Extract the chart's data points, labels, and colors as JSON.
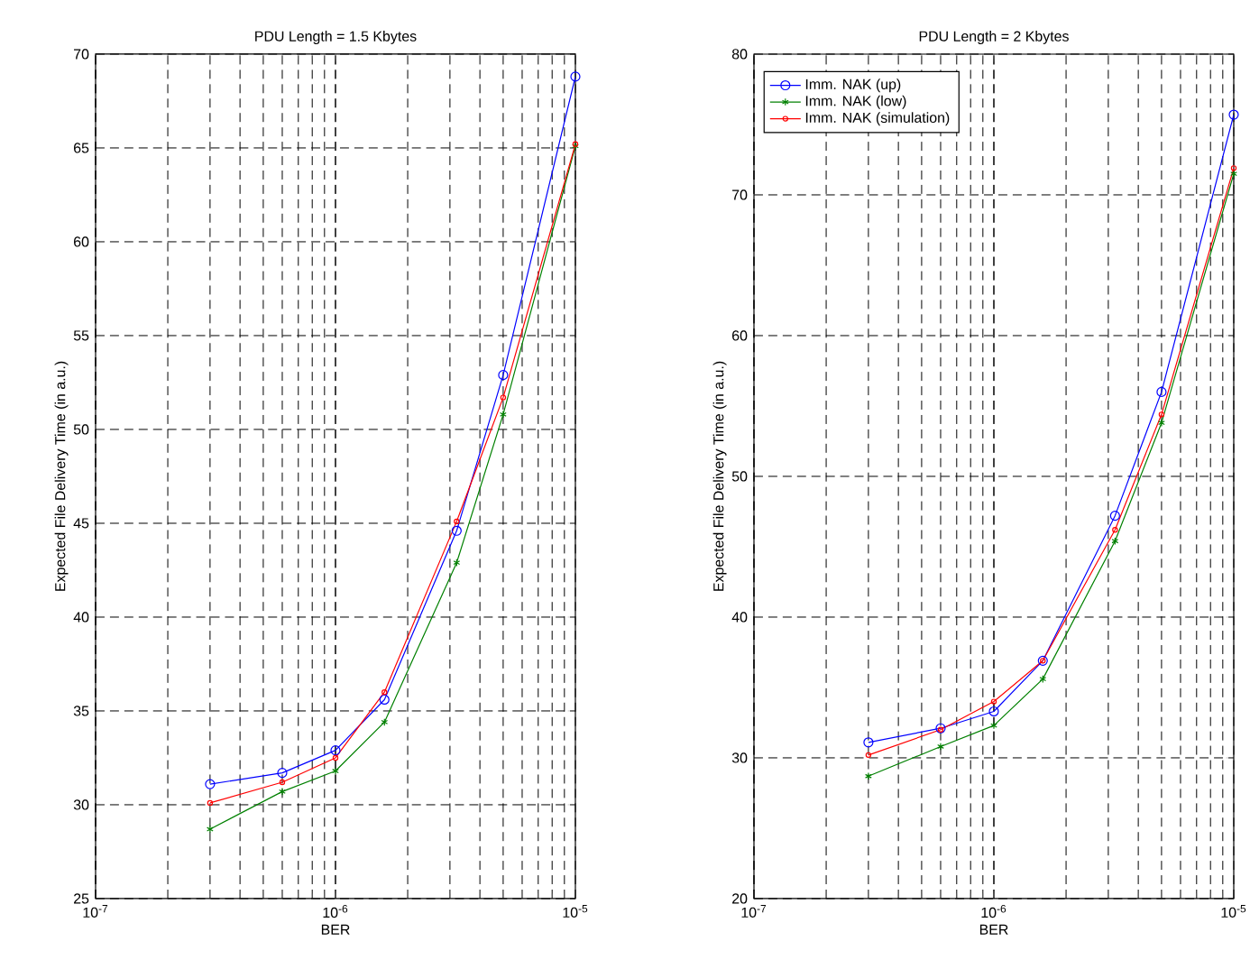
{
  "chart_data": [
    {
      "type": "line",
      "title": "PDU Length = 1.5 Kbytes",
      "xlabel": "BER",
      "ylabel": "Expected File Delivery Time (in a.u.)",
      "log": "x",
      "grid": true,
      "legend": false,
      "xlim": [
        1e-07,
        1e-05
      ],
      "xticks": [
        {
          "value": 1e-07,
          "label": "10$^{-7}$"
        },
        {
          "value": 1e-06,
          "label": "10$^{-6}$"
        },
        {
          "value": 1e-05,
          "label": "10$^{-5}$"
        }
      ],
      "ylim": [
        25,
        70
      ],
      "yticks": [
        25,
        30,
        35,
        40,
        45,
        50,
        55,
        60,
        65,
        70
      ],
      "x": [
        3e-07,
        6e-07,
        1e-06,
        1.6e-06,
        3.2e-06,
        5e-06,
        1e-05
      ],
      "series": [
        {
          "color": "#0000ff",
          "marker": "circle",
          "values": [
            31.1,
            31.7,
            32.9,
            35.6,
            44.6,
            52.9,
            68.8
          ]
        },
        {
          "color": "#008000",
          "marker": "cross",
          "values": [
            28.7,
            30.7,
            31.8,
            34.4,
            42.9,
            50.8,
            65.1
          ]
        },
        {
          "color": "#ff0000",
          "marker": "circle",
          "values": [
            30.1,
            31.2,
            32.5,
            36.0,
            45.1,
            51.7,
            65.2
          ]
        }
      ]
    },
    {
      "type": "line",
      "title": "PDU Length = 2 Kbytes",
      "xlabel": "BER",
      "ylabel": "Expected File Delivery Time (in a.u.)",
      "log": "x",
      "grid": true,
      "legend": "top left",
      "xlim": [
        1e-07,
        1e-05
      ],
      "xticks": [
        {
          "value": 1e-07,
          "label": "10$^{-7}$"
        },
        {
          "value": 1e-06,
          "label": "10$^{-6}$"
        },
        {
          "value": 1e-05,
          "label": "10$^{-5}$"
        }
      ],
      "ylim": [
        20,
        80
      ],
      "yticks": [
        20,
        30,
        40,
        50,
        60,
        70,
        80
      ],
      "x": [
        3e-07,
        6e-07,
        1e-06,
        1.6e-06,
        3.2e-06,
        5e-06,
        1e-05
      ],
      "series": [
        {
          "name": "Imm. NAK (up)",
          "color": "#0000ff",
          "marker": "circle",
          "values": [
            31.1,
            32.1,
            33.3,
            36.9,
            47.2,
            56.0,
            75.7
          ]
        },
        {
          "name": "Imm. NAK (low)",
          "color": "#008000",
          "marker": "cross",
          "values": [
            28.7,
            30.8,
            32.3,
            35.6,
            45.4,
            53.8,
            71.5
          ]
        },
        {
          "name": "Imm. NAK (simulation)",
          "color": "#ff0000",
          "marker": "circle",
          "values": [
            30.2,
            32.0,
            34.0,
            36.9,
            46.2,
            54.4,
            71.9
          ]
        }
      ]
    }
  ]
}
